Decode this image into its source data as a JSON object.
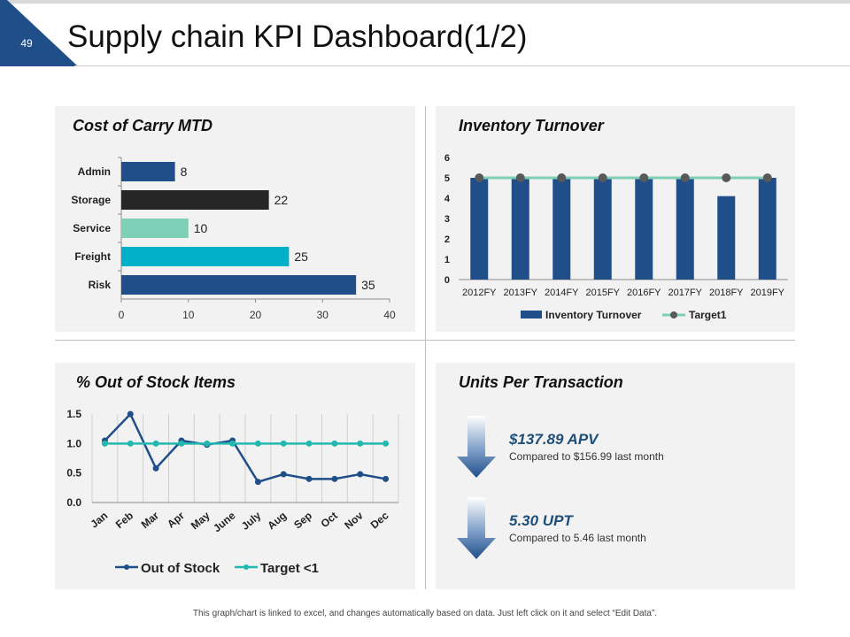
{
  "slide": {
    "number": "49",
    "title": "Supply chain KPI Dashboard(1/2)"
  },
  "colors": {
    "navy": "#1f4e89",
    "dark": "#262626",
    "mint": "#7dcfb6",
    "teal": "#00b0c8",
    "target": "#22b8b0"
  },
  "panels": {
    "cost": {
      "title": "Cost of Carry MTD"
    },
    "turnover": {
      "title": "Inventory Turnover"
    },
    "stock": {
      "title": "% Out of Stock Items"
    },
    "units": {
      "title": "Units Per Transaction",
      "kpis": [
        {
          "value": "$137.89 APV",
          "sub": "Compared to $156.99  last month",
          "icon": "arrow-down-icon"
        },
        {
          "value": "5.30 UPT",
          "sub": "Compared to 5.46 last month",
          "icon": "arrow-down-icon"
        }
      ]
    }
  },
  "chart_data": [
    {
      "type": "bar",
      "orientation": "horizontal",
      "title": "Cost of Carry MTD",
      "categories": [
        "Admin",
        "Storage",
        "Service",
        "Freight",
        "Risk"
      ],
      "values": [
        8,
        22,
        10,
        25,
        35
      ],
      "value_labels": [
        "8",
        "22",
        "10",
        "25",
        "35"
      ],
      "bar_colors": [
        "#1f4e89",
        "#262626",
        "#7dcfb6",
        "#00b0c8",
        "#1f4e89"
      ],
      "xlim": [
        0,
        40
      ],
      "xticks": [
        "0",
        "10",
        "20",
        "30",
        "40"
      ]
    },
    {
      "type": "bar",
      "title": "Inventory Turnover",
      "categories": [
        "2012FY",
        "2013FY",
        "2014FY",
        "2015FY",
        "2016FY",
        "2017FY",
        "2018FY",
        "2019FY"
      ],
      "series": [
        {
          "name": "Inventory Turnover",
          "type": "bar",
          "values": [
            5,
            5,
            5,
            5,
            5,
            5,
            4.1,
            5
          ]
        },
        {
          "name": "Target1",
          "type": "line",
          "values": [
            5,
            5,
            5,
            5,
            5,
            5,
            5,
            5
          ]
        }
      ],
      "ylim": [
        0,
        6
      ],
      "yticks": [
        "0",
        "1",
        "2",
        "3",
        "4",
        "5",
        "6"
      ],
      "legend": "bottom"
    },
    {
      "type": "line",
      "title": "% Out of Stock Items",
      "categories": [
        "Jan",
        "Feb",
        "Mar",
        "Apr",
        "May",
        "June",
        "July",
        "Aug",
        "Sep",
        "Oct",
        "Nov",
        "Dec"
      ],
      "series": [
        {
          "name": "Out of Stock",
          "values": [
            1.05,
            1.5,
            0.58,
            1.05,
            0.98,
            1.05,
            0.35,
            0.48,
            0.4,
            0.4,
            0.48,
            0.4
          ]
        },
        {
          "name": "Target <1",
          "values": [
            1.0,
            1.0,
            1.0,
            1.0,
            1.0,
            1.0,
            1.0,
            1.0,
            1.0,
            1.0,
            1.0,
            1.0
          ]
        }
      ],
      "ylim": [
        0,
        1.5
      ],
      "yticks": [
        "0.0",
        "0.5",
        "1.0",
        "1.5"
      ],
      "grid": "vertical",
      "legend": "bottom"
    }
  ],
  "footer": "This graph/chart is linked to excel, and changes automatically based on data. Just left click on it and select “Edit Data”."
}
